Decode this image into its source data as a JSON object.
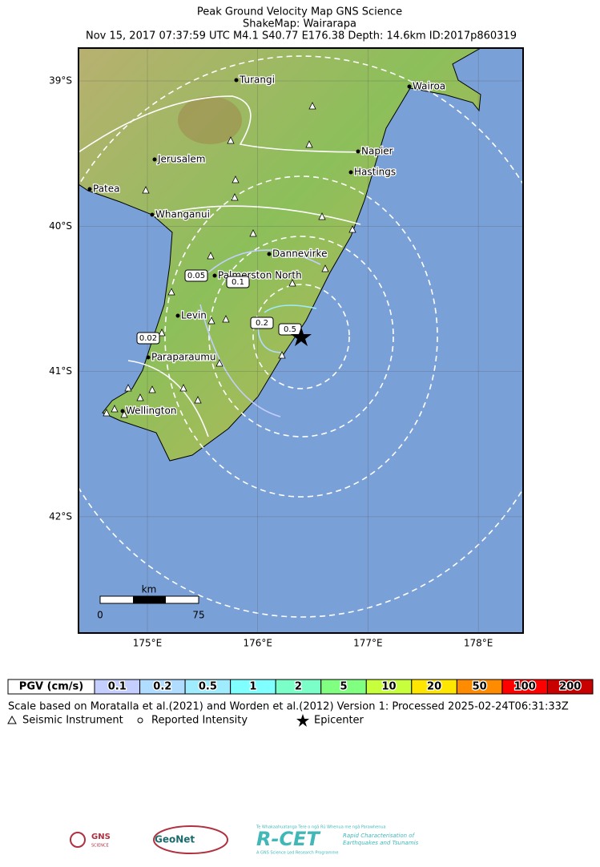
{
  "header": {
    "title": "Peak Ground Velocity Map GNS Science",
    "subtitle": "ShakeMap: Wairarapa",
    "event": "Nov 15, 2017 07:37:59 UTC M4.1 S40.77 E176.38 Depth: 14.6km ID:2017p860319"
  },
  "map": {
    "lat_ticks": [
      {
        "value": -39,
        "label": "39°S"
      },
      {
        "value": -40,
        "label": "40°S"
      },
      {
        "value": -41,
        "label": "41°S"
      },
      {
        "value": -42,
        "label": "42°S"
      }
    ],
    "lon_ticks": [
      {
        "value": 175,
        "label": "175°E"
      },
      {
        "value": 176,
        "label": "176°E"
      },
      {
        "value": 177,
        "label": "177°E"
      },
      {
        "value": 178,
        "label": "178°E"
      }
    ],
    "cities": [
      "Turangi",
      "Wairoa",
      "Napier",
      "Hastings",
      "Jerusalem",
      "Patea",
      "Whanganui",
      "Dannevirke",
      "Palmerston North",
      "Levin",
      "Paraparaumu",
      "Wellington"
    ],
    "contour_labels": [
      "0.05",
      "0.1",
      "0.2",
      "0.5",
      "0.02"
    ],
    "scale_bar": {
      "unit": "km",
      "start": "0",
      "end": "75"
    }
  },
  "legend": {
    "title": "PGV (cm/s)",
    "items": [
      {
        "label": "0.1",
        "color": "#c4ceff"
      },
      {
        "label": "0.2",
        "color": "#b0dcff"
      },
      {
        "label": "0.5",
        "color": "#a0ecff"
      },
      {
        "label": "1",
        "color": "#80ffff"
      },
      {
        "label": "2",
        "color": "#7affc8"
      },
      {
        "label": "5",
        "color": "#80ff80"
      },
      {
        "label": "10",
        "color": "#c8ff3c"
      },
      {
        "label": "20",
        "color": "#ffe600"
      },
      {
        "label": "50",
        "color": "#ff8c00"
      },
      {
        "label": "100",
        "color": "#ff0000"
      },
      {
        "label": "200",
        "color": "#c80000"
      }
    ]
  },
  "footer": {
    "note": "Scale based on Moratalla et al.(2021) and Worden et al.(2012)   Version 1: Processed 2025-02-24T06:31:33Z",
    "symbols": [
      "Seismic Instrument",
      "Reported Intensity",
      "Epicenter"
    ]
  },
  "logos": {
    "gns": "GNS",
    "gns_sub": "SCIENCE",
    "geonet": "GeoNet",
    "rcet": "R-CET",
    "rcet_maori": "Te Whakaahuatanga Tere o ngā Rū Whenua me ngā Parawhenua",
    "rcet_line1": "Rapid Characterisation of",
    "rcet_line2": "Earthquakes and Tsunamis",
    "rcet_sub": "A GNS Science Led Research Programme"
  }
}
